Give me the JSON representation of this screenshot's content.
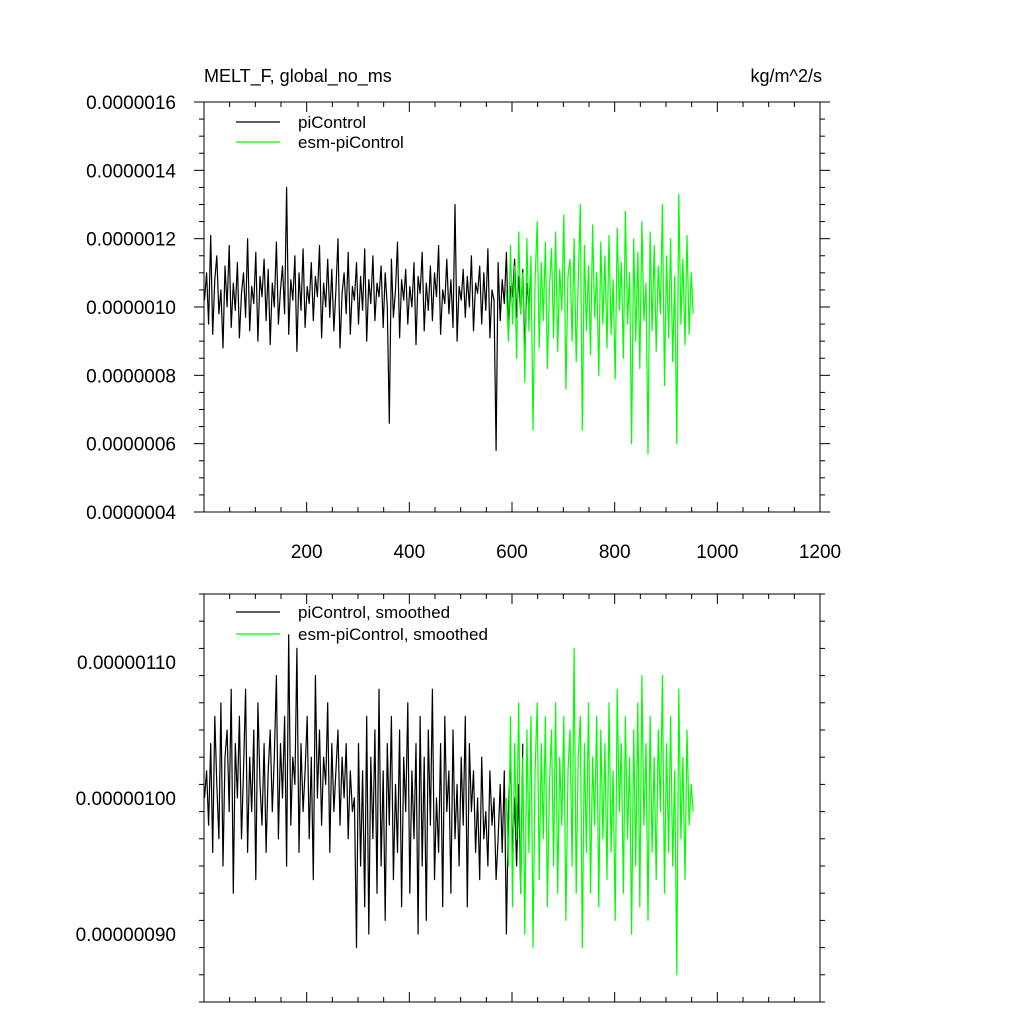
{
  "chart_data": [
    {
      "type": "line",
      "title_left": "MELT_F, global_no_ms",
      "title_right": "kg/m^2/s",
      "xlim": [
        0,
        1200
      ],
      "ylim": [
        4e-07,
        1.6e-06
      ],
      "xticks": [
        200,
        400,
        600,
        800,
        1000,
        1200
      ],
      "xtick_labels": [
        "200",
        "400",
        "600",
        "800",
        "1000",
        "1200"
      ],
      "yticks": [
        4e-07,
        6e-07,
        8e-07,
        1e-06,
        1.2e-06,
        1.4e-06,
        1.6e-06
      ],
      "ytick_labels": [
        "0.0000004",
        "0.0000006",
        "0.0000008",
        "0.0000010",
        "0.0000012",
        "0.0000014",
        "0.0000016"
      ],
      "legend": [
        "piControl",
        "esm-piControl"
      ],
      "legend_position": "top-left",
      "series": [
        {
          "name": "piControl",
          "color": "#000000",
          "x_start": 1,
          "x_step": 4,
          "values": [
            1.02e-06,
            1.1e-06,
            9.5e-07,
            1.21e-06,
            9.2e-07,
            1.08e-06,
            1.15e-06,
            9.8e-07,
            1.05e-06,
            8.8e-07,
            1.12e-06,
            1e-06,
            1.18e-06,
            9.4e-07,
            1.07e-06,
            9.9e-07,
            1.13e-06,
            9.1e-07,
            1.04e-06,
            1.1e-06,
            9.7e-07,
            1.2e-06,
            9.3e-07,
            1.06e-06,
            1.01e-06,
            1.16e-06,
            9e-07,
            1.09e-06,
            1.03e-06,
            1.14e-06,
            9.6e-07,
            1.11e-06,
            8.9e-07,
            1.07e-06,
            1e-06,
            1.19e-06,
            9.5e-07,
            1.05e-06,
            1.12e-06,
            9.8e-07,
            1.35e-06,
            9.2e-07,
            1.08e-06,
            1.02e-06,
            1.15e-06,
            8.7e-07,
            1.1e-06,
            9.9e-07,
            1.17e-06,
            9.4e-07,
            1.06e-06,
            1.01e-06,
            1.13e-06,
            9.6e-07,
            1.09e-06,
            1.03e-06,
            1.18e-06,
            9.1e-07,
            1.07e-06,
            1e-06,
            1.14e-06,
            9.7e-07,
            1.11e-06,
            9.3e-07,
            1.05e-06,
            1.2e-06,
            8.8e-07,
            1.04e-06,
            1.1e-06,
            9.8e-07,
            1.16e-06,
            9.2e-07,
            1.06e-06,
            1.02e-06,
            1.13e-06,
            9.5e-07,
            1.09e-06,
            9.9e-07,
            1.17e-06,
            9e-07,
            1.08e-06,
            1.01e-06,
            1.15e-06,
            9.6e-07,
            1.07e-06,
            1.03e-06,
            1.12e-06,
            9.4e-07,
            1.1e-06,
            1e-06,
            6.6e-07,
            1.14e-06,
            9.7e-07,
            1.05e-06,
            1.19e-06,
            9.1e-07,
            1.08e-06,
            1.02e-06,
            1.11e-06,
            9.5e-07,
            1.06e-06,
            1e-06,
            1.13e-06,
            8.9e-07,
            1.09e-06,
            1.04e-06,
            1.16e-06,
            9.3e-07,
            1.07e-06,
            9.9e-07,
            1.12e-06,
            9.6e-07,
            1.1e-06,
            1.03e-06,
            1.18e-06,
            9.2e-07,
            1.05e-06,
            1.01e-06,
            1.14e-06,
            9.8e-07,
            1.08e-06,
            9.4e-07,
            1.3e-06,
            9e-07,
            1.06e-06,
            1.02e-06,
            1.11e-06,
            9.7e-07,
            1.09e-06,
            1e-06,
            1.15e-06,
            9.3e-07,
            1.07e-06,
            1.04e-06,
            1.12e-06,
            9.5e-07,
            1.1e-06,
            9.9e-07,
            1.17e-06,
            9.1e-07,
            1.05e-06,
            1.02e-06,
            5.8e-07,
            1.13e-06,
            9.6e-07,
            1.08e-06,
            1.01e-06,
            1.16e-06,
            9.2e-07,
            1.06e-06,
            1.03e-06,
            1.14e-06,
            9.7e-07,
            1.09e-06,
            9.8e-07,
            1.11e-06,
            8.7e-07,
            1.07e-06,
            1e-06,
            1.12e-06
          ]
        },
        {
          "name": "esm-piControl",
          "color": "#00ff00",
          "x_start": 589,
          "x_step": 4,
          "values": [
            1.05e-06,
            9e-07,
            1.18e-06,
            9.5e-07,
            1.12e-06,
            8.5e-07,
            1.22e-06,
            9.8e-07,
            1.1e-06,
            7.8e-07,
            1.2e-06,
            9.3e-07,
            1.15e-06,
            6.4e-07,
            1.08e-06,
            1.25e-06,
            8.8e-07,
            1.13e-06,
            9.6e-07,
            1.19e-06,
            8.2e-07,
            1.06e-06,
            1.17e-06,
            9.1e-07,
            1.22e-06,
            8.7e-07,
            1.11e-06,
            9.9e-07,
            1.27e-06,
            7.6e-07,
            1.09e-06,
            1.14e-06,
            9e-07,
            1.2e-06,
            8.4e-07,
            1.07e-06,
            1.3e-06,
            6.4e-07,
            1.18e-06,
            9.3e-07,
            1.12e-06,
            8.6e-07,
            1.24e-06,
            9.7e-07,
            1.1e-06,
            8e-07,
            1.19e-06,
            9.5e-07,
            1.15e-06,
            8.8e-07,
            1.21e-06,
            9.2e-07,
            1.08e-06,
            7.9e-07,
            1.23e-06,
            9.9e-07,
            1.13e-06,
            8.5e-07,
            1.28e-06,
            9.5e-07,
            1.1e-06,
            6e-07,
            1.2e-06,
            9e-07,
            1.16e-06,
            8.2e-07,
            1.25e-06,
            9.6e-07,
            1.07e-06,
            5.7e-07,
            1.22e-06,
            9.3e-07,
            1.18e-06,
            8.7e-07,
            1.12e-06,
            9.8e-07,
            1.3e-06,
            7.7e-07,
            1.15e-06,
            9.1e-07,
            1.2e-06,
            8.4e-07,
            1.09e-06,
            6e-07,
            1.33e-06,
            9.5e-07,
            1.14e-06,
            8.9e-07,
            1.21e-06,
            9.2e-07,
            1.1e-06,
            9.8e-07
          ]
        }
      ]
    },
    {
      "type": "line",
      "xlim": [
        0,
        1200
      ],
      "ylim": [
        8.5e-07,
        1.15e-06
      ],
      "xticks": [
        200,
        400,
        600,
        800,
        1000,
        1200
      ],
      "yticks": [
        9e-07,
        1e-06,
        1.1e-06
      ],
      "ytick_labels": [
        "0.00000090",
        "0.00000100",
        "0.00000110"
      ],
      "legend": [
        "piControl, smoothed",
        "esm-piControl, smoothed"
      ],
      "legend_position": "top-left",
      "series": [
        {
          "name": "piControl, smoothed",
          "color": "#000000",
          "x_start": 1,
          "x_step": 4,
          "values": [
            1e-06,
            1.02e-06,
            9.8e-07,
            1.04e-06,
            9.6e-07,
            1.06e-06,
            1.01e-06,
            9.7e-07,
            1.07e-06,
            9.5e-07,
            1.03e-06,
            1.05e-06,
            9.9e-07,
            1.08e-06,
            9.3e-07,
            1.04e-06,
            1e-06,
            1.06e-06,
            9.7e-07,
            1.02e-06,
            1.08e-06,
            9.6e-07,
            1.03e-06,
            9.9e-07,
            1.05e-06,
            9.4e-07,
            1.07e-06,
            1.01e-06,
            9.8e-07,
            1.04e-06,
            9.6e-07,
            1.02e-06,
            1.05e-06,
            9.9e-07,
            1.03e-06,
            1.09e-06,
            9.7e-07,
            1.04e-06,
            1e-06,
            1.06e-06,
            9.5e-07,
            1.12e-06,
            9.8e-07,
            1.03e-06,
            1.01e-06,
            1.11e-06,
            9.6e-07,
            1.04e-06,
            9.9e-07,
            1.02e-06,
            1.06e-06,
            9.7e-07,
            1.03e-06,
            9.4e-07,
            1.09e-06,
            1e-06,
            1.05e-06,
            9.8e-07,
            1.03e-06,
            1.01e-06,
            1.07e-06,
            9.6e-07,
            1.04e-06,
            9.9e-07,
            1.02e-06,
            1.05e-06,
            9.8e-07,
            1.03e-06,
            1e-06,
            1.04e-06,
            9.7e-07,
            1.02e-06,
            9.9e-07,
            1e-06,
            8.9e-07,
            1.04e-06,
            9.5e-07,
            1.02e-06,
            9.2e-07,
            1.06e-06,
            9e-07,
            1.03e-06,
            9.7e-07,
            1.05e-06,
            9.3e-07,
            1.08e-06,
            9.5e-07,
            1.02e-06,
            9.1e-07,
            1.04e-06,
            9.8e-07,
            1.06e-06,
            9.4e-07,
            1.01e-06,
            9.6e-07,
            1.05e-06,
            9.2e-07,
            1.03e-06,
            9.9e-07,
            1.07e-06,
            9.3e-07,
            1.02e-06,
            9.7e-07,
            1.04e-06,
            9e-07,
            1.06e-06,
            9.5e-07,
            1.03e-06,
            9.1e-07,
            1.05e-06,
            9.8e-07,
            1.08e-06,
            9.4e-07,
            1e-06,
            9.6e-07,
            1.04e-06,
            9.2e-07,
            1.06e-06,
            9.9e-07,
            1.02e-06,
            9.3e-07,
            1.05e-06,
            9.7e-07,
            1.01e-06,
            9.5e-07,
            1.03e-06,
            9.8e-07,
            1.06e-06,
            9.2e-07,
            1.04e-06,
            9.9e-07,
            1.02e-06,
            9.6e-07,
            1e-06,
            9.4e-07,
            1.03e-06,
            9.7e-07,
            9.9e-07,
            9.5e-07,
            1.02e-06,
            9.8e-07,
            1e-06,
            9.4e-07,
            9.7e-07,
            1.01e-06,
            9.6e-07,
            1.02e-06,
            9e-07,
            9.9e-07,
            1.03e-06,
            9.6e-07,
            1e-06,
            9.5e-07,
            1.01e-06,
            9.3e-07,
            1.04e-06
          ]
        },
        {
          "name": "esm-piControl, smoothed",
          "color": "#00ff00",
          "x_start": 589,
          "x_step": 4,
          "values": [
            1e-06,
            9.5e-07,
            1.06e-06,
            9.2e-07,
            1.04e-06,
            9.7e-07,
            1.07e-06,
            9.3e-07,
            1.03e-06,
            9e-07,
            1.05e-06,
            9.6e-07,
            1.06e-06,
            8.9e-07,
            1.02e-06,
            1.07e-06,
            9.4e-07,
            1.04e-06,
            9.7e-07,
            1.06e-06,
            9.2e-07,
            1.01e-06,
            1.05e-06,
            9.5e-07,
            1.07e-06,
            9.3e-07,
            1.03e-06,
            9.8e-07,
            1.06e-06,
            9.1e-07,
            1.02e-06,
            1.05e-06,
            9.5e-07,
            1.11e-06,
            9.3e-07,
            1.03e-06,
            1.06e-06,
            8.9e-07,
            1.04e-06,
            9.6e-07,
            1.07e-06,
            9.3e-07,
            1.03e-06,
            9.8e-07,
            1.06e-06,
            9.2e-07,
            1.05e-06,
            9.7e-07,
            1.04e-06,
            9.4e-07,
            1.07e-06,
            9.6e-07,
            1.02e-06,
            9.1e-07,
            1.08e-06,
            9.9e-07,
            1.04e-06,
            9.3e-07,
            1.06e-06,
            9.7e-07,
            1.03e-06,
            9e-07,
            1.05e-06,
            9.5e-07,
            1.07e-06,
            9.2e-07,
            1.09e-06,
            9.8e-07,
            1.04e-06,
            9.1e-07,
            1.06e-06,
            9.6e-07,
            1.03e-06,
            9.4e-07,
            1.05e-06,
            9.9e-07,
            1.09e-06,
            9.3e-07,
            1.04e-06,
            9.6e-07,
            1.06e-06,
            9.5e-07,
            1.02e-06,
            8.7e-07,
            1.08e-06,
            9.7e-07,
            1.03e-06,
            9.4e-07,
            1.05e-06,
            9.8e-07,
            1.01e-06,
            9.9e-07
          ]
        }
      ]
    }
  ]
}
